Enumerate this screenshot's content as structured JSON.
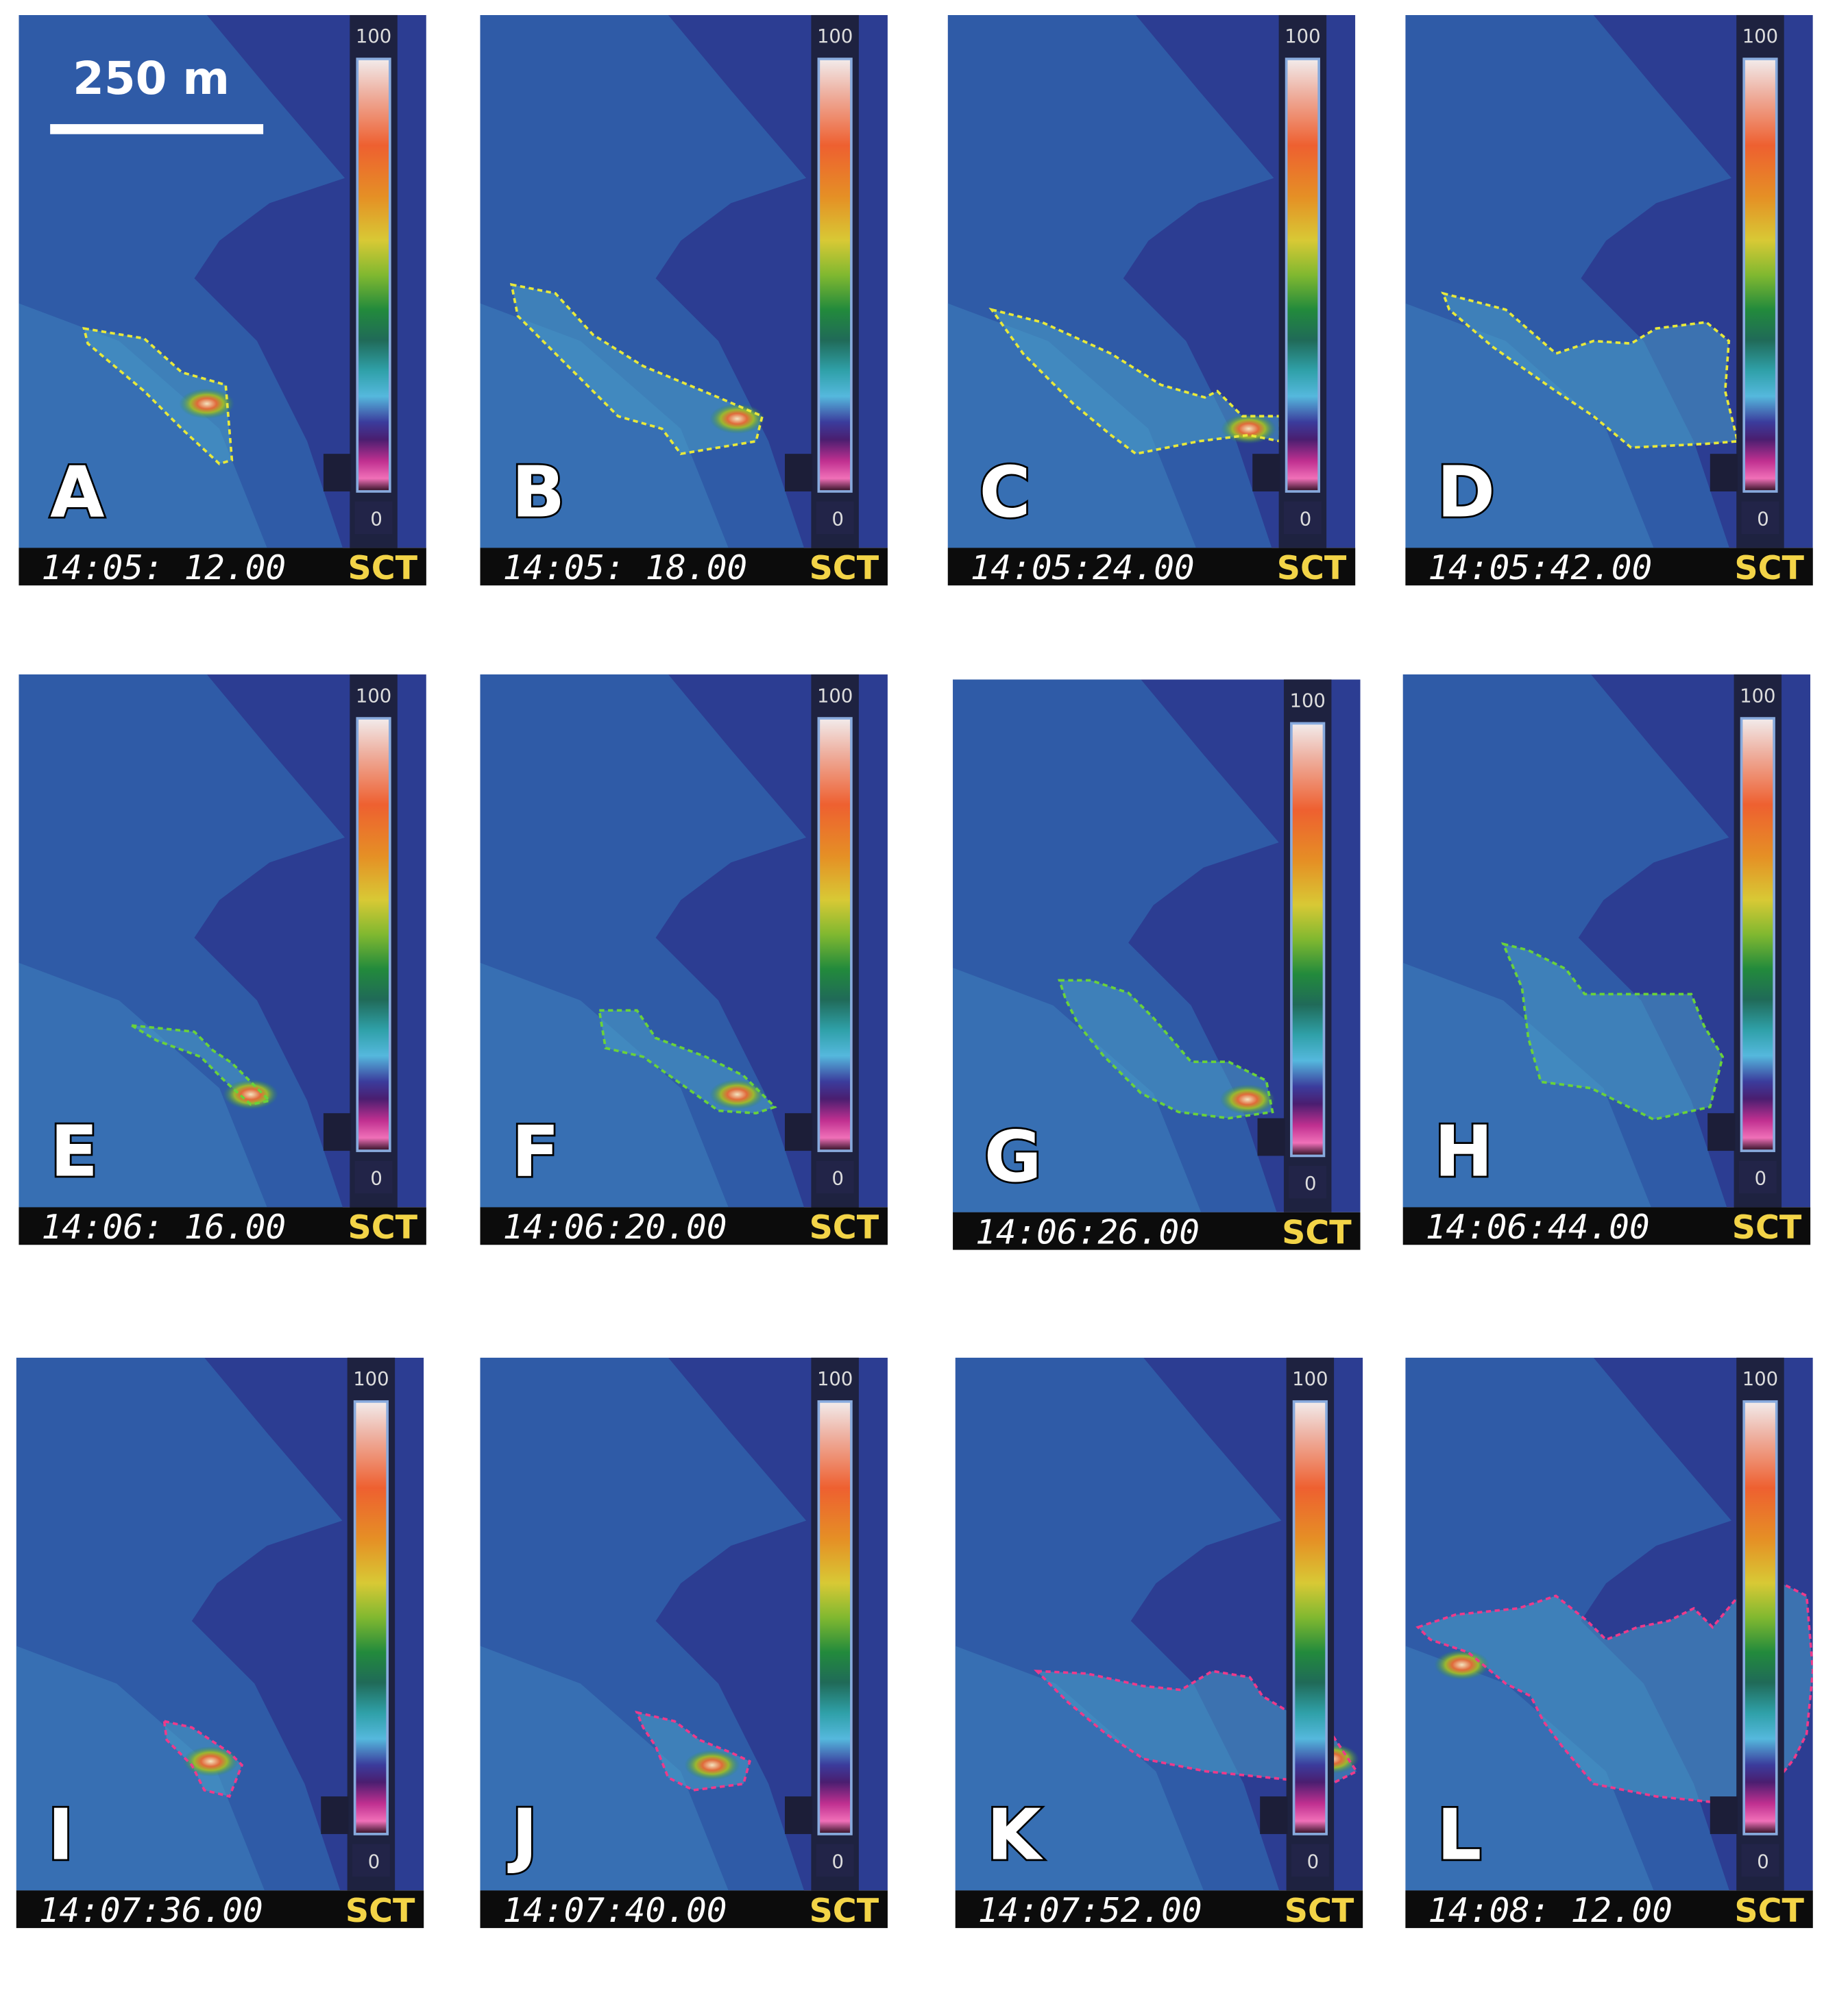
{
  "scale_bar": {
    "label": "250 m"
  },
  "panels": [
    {
      "label": "A",
      "time": "14:05: 12.00",
      "camera": "SCT",
      "scale_max": "100",
      "scale_min": "0"
    },
    {
      "label": "B",
      "time": "14:05: 18.00",
      "camera": "SCT",
      "scale_max": "100",
      "scale_min": "0"
    },
    {
      "label": "C",
      "time": "14:05:24.00",
      "camera": "SCT",
      "scale_max": "100",
      "scale_min": "0"
    },
    {
      "label": "D",
      "time": "14:05:42.00",
      "camera": "SCT",
      "scale_max": "100",
      "scale_min": "0"
    },
    {
      "label": "E",
      "time": "14:06: 16.00",
      "camera": "SCT",
      "scale_max": "100",
      "scale_min": "0"
    },
    {
      "label": "F",
      "time": "14:06:20.00",
      "camera": "SCT",
      "scale_max": "100",
      "scale_min": "0"
    },
    {
      "label": "G",
      "time": "14:06:26.00",
      "camera": "SCT",
      "scale_max": "100",
      "scale_min": "0"
    },
    {
      "label": "H",
      "time": "14:06:44.00",
      "camera": "SCT",
      "scale_max": "100",
      "scale_min": "0"
    },
    {
      "label": "I",
      "time": "14:07:36.00",
      "camera": "SCT",
      "scale_max": "100",
      "scale_min": "0"
    },
    {
      "label": "J",
      "time": "14:07:40.00",
      "camera": "SCT",
      "scale_max": "100",
      "scale_min": "0"
    },
    {
      "label": "K",
      "time": "14:07:52.00",
      "camera": "SCT",
      "scale_max": "100",
      "scale_min": "0"
    },
    {
      "label": "L",
      "time": "14:08: 12.00",
      "camera": "SCT",
      "scale_max": "100",
      "scale_min": "0"
    }
  ]
}
